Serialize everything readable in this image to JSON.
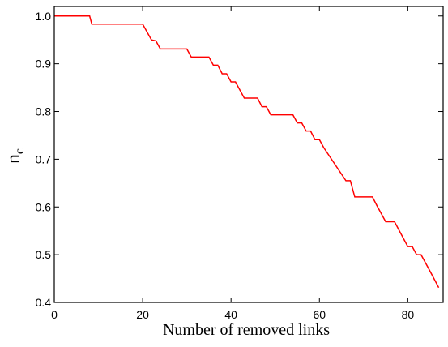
{
  "chart_data": {
    "type": "line",
    "title": "",
    "xlabel": "Number of removed links",
    "ylabel": "n",
    "ylabel_subscript": "c",
    "xlim": [
      0,
      88
    ],
    "ylim": [
      0.4,
      1.02
    ],
    "xticks": [
      0,
      20,
      40,
      60,
      80
    ],
    "yticks": [
      0.4,
      0.5,
      0.6,
      0.7,
      0.8,
      0.9,
      1.0
    ],
    "ytick_labels": [
      "0.4",
      "0.5",
      "0.6",
      "0.7",
      "0.8",
      "0.9",
      "1.0"
    ],
    "grid": false,
    "series": [
      {
        "color": "#ff0000",
        "x": [
          0,
          8,
          8.5,
          20,
          22,
          23,
          24,
          30,
          31,
          35,
          36,
          37,
          38,
          39,
          40,
          41,
          42,
          43,
          46,
          47,
          48,
          49,
          54,
          55,
          56,
          57,
          58,
          59,
          60,
          61,
          66,
          67,
          68,
          72,
          73,
          75,
          76,
          77,
          80,
          81,
          82,
          83,
          84,
          85,
          87
        ],
        "y": [
          1.0,
          1.0,
          0.983,
          0.983,
          0.95,
          0.948,
          0.931,
          0.931,
          0.914,
          0.914,
          0.897,
          0.897,
          0.879,
          0.879,
          0.862,
          0.862,
          0.845,
          0.828,
          0.828,
          0.81,
          0.81,
          0.793,
          0.793,
          0.776,
          0.776,
          0.759,
          0.759,
          0.741,
          0.741,
          0.724,
          0.655,
          0.655,
          0.621,
          0.621,
          0.603,
          0.569,
          0.569,
          0.569,
          0.517,
          0.517,
          0.5,
          0.5,
          0.483,
          0.466,
          0.431
        ]
      }
    ]
  }
}
